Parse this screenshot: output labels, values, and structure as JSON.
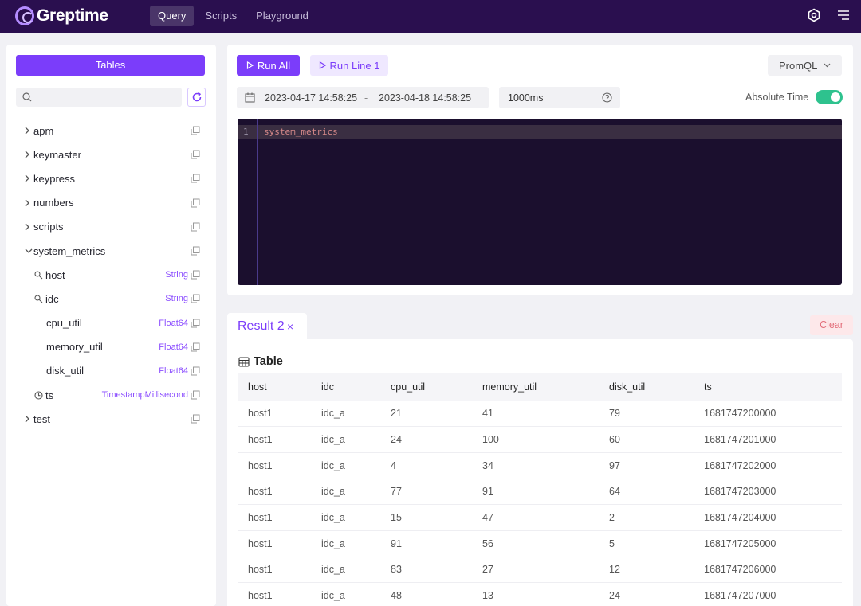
{
  "app": {
    "name": "Greptime",
    "nav": [
      "Query",
      "Scripts",
      "Playground"
    ]
  },
  "sidebar": {
    "tables_button": "Tables",
    "search_placeholder": "",
    "tree": [
      {
        "name": "apm",
        "expanded": false
      },
      {
        "name": "keymaster",
        "expanded": false
      },
      {
        "name": "keypress",
        "expanded": false
      },
      {
        "name": "numbers",
        "expanded": false
      },
      {
        "name": "scripts",
        "expanded": false
      },
      {
        "name": "system_metrics",
        "expanded": true,
        "columns": [
          {
            "name": "host",
            "type": "String",
            "icon": "key-icon"
          },
          {
            "name": "idc",
            "type": "String",
            "icon": "key-icon"
          },
          {
            "name": "cpu_util",
            "type": "Float64",
            "icon": ""
          },
          {
            "name": "memory_util",
            "type": "Float64",
            "icon": ""
          },
          {
            "name": "disk_util",
            "type": "Float64",
            "icon": ""
          },
          {
            "name": "ts",
            "type": "TimestampMillisecond",
            "icon": "clock-icon"
          }
        ]
      },
      {
        "name": "test",
        "expanded": false
      }
    ]
  },
  "query": {
    "run_all": "Run All",
    "run_line": "Run Line 1",
    "language": "PromQL",
    "range_start": "2023-04-17 14:58:25",
    "range_sep": "-",
    "range_end": "2023-04-18 14:58:25",
    "step": "1000ms",
    "absolute_time_label": "Absolute Time",
    "absolute_time_on": true,
    "editor": {
      "line_number": "1",
      "code": "system_metrics"
    }
  },
  "results": {
    "tab_label": "Result 2",
    "close_glyph": "×",
    "clear_label": "Clear",
    "table_title": "Table",
    "columns": [
      "host",
      "idc",
      "cpu_util",
      "memory_util",
      "disk_util",
      "ts"
    ],
    "rows": [
      [
        "host1",
        "idc_a",
        "21",
        "41",
        "79",
        "1681747200000"
      ],
      [
        "host1",
        "idc_a",
        "24",
        "100",
        "60",
        "1681747201000"
      ],
      [
        "host1",
        "idc_a",
        "4",
        "34",
        "97",
        "1681747202000"
      ],
      [
        "host1",
        "idc_a",
        "77",
        "91",
        "64",
        "1681747203000"
      ],
      [
        "host1",
        "idc_a",
        "15",
        "47",
        "2",
        "1681747204000"
      ],
      [
        "host1",
        "idc_a",
        "91",
        "56",
        "5",
        "1681747205000"
      ],
      [
        "host1",
        "idc_a",
        "83",
        "27",
        "12",
        "1681747206000"
      ],
      [
        "host1",
        "idc_a",
        "48",
        "13",
        "24",
        "1681747207000"
      ]
    ]
  },
  "colors": {
    "topbar": "#2a0f4f",
    "accent": "#7b3dfa",
    "toggle_on": "#2ec28e",
    "editor_bg": "#1b0f2e"
  }
}
